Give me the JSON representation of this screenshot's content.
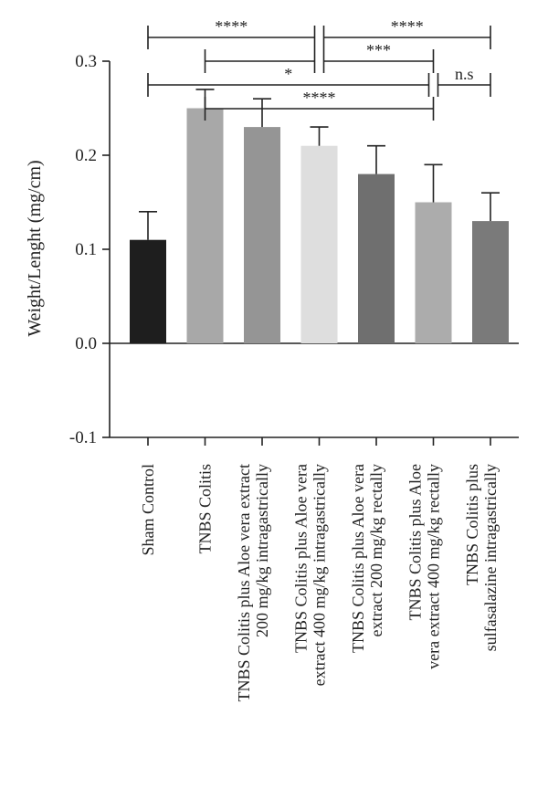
{
  "chart_data": {
    "type": "bar",
    "title": "",
    "xlabel": "",
    "ylabel": "Weight/Lenght (mg/cm)",
    "ylim": [
      -0.1,
      0.3
    ],
    "yticks": [
      "-0.1",
      "0.0",
      "0.1",
      "0.2",
      "0.3"
    ],
    "grid": false,
    "categories": [
      "Sham Control",
      "TNBS Colitis",
      "TNBS Colitis plus Aloe vera extract 200 mg/kg intragastrically",
      "TNBS Colitis plus Aloe vera extract 400 mg/kg intragastrically",
      "TNBS Colitis plus Aloe vera extract 200 mg/kg rectally",
      "TNBS Colitis plus Aloe vera extract 400 mg/kg rectally",
      "TNBS Colitis plus sulfasalazine intragastrically"
    ],
    "category_lines": [
      [
        "Sham Control"
      ],
      [
        "TNBS Colitis"
      ],
      [
        "TNBS Colitis plus Aloe vera extract",
        "200 mg/kg intragastrically"
      ],
      [
        "TNBS Colitis plus Aloe vera",
        "extract 400 mg/kg intragastrically"
      ],
      [
        "TNBS Colitis plus Aloe vera",
        "extract 200 mg/kg rectally"
      ],
      [
        "TNBS Colitis plus Aloe",
        "vera extract 400 mg/kg rectally"
      ],
      [
        "TNBS Colitis plus",
        "sulfasalazine intragastrically"
      ]
    ],
    "values": [
      0.11,
      0.25,
      0.23,
      0.21,
      0.18,
      0.15,
      0.13
    ],
    "errors": [
      0.03,
      0.02,
      0.03,
      0.02,
      0.03,
      0.04,
      0.03
    ],
    "colors": [
      "#1e1e1e",
      "#a8a8a8",
      "#959595",
      "#dedede",
      "#6f6f6f",
      "#acacac",
      "#7a7a7a"
    ],
    "significance": [
      {
        "from": 0,
        "to": 3,
        "label": "****"
      },
      {
        "from": 3,
        "to": 6,
        "label": "****"
      },
      {
        "from": 1,
        "to": 3,
        "label": ""
      },
      {
        "from": 3,
        "to": 5,
        "label": "***"
      },
      {
        "from": 0,
        "to": 5,
        "label": "*"
      },
      {
        "from": 5,
        "to": 6,
        "label": "n.s"
      },
      {
        "from": 1,
        "to": 5,
        "label": "****"
      }
    ]
  }
}
